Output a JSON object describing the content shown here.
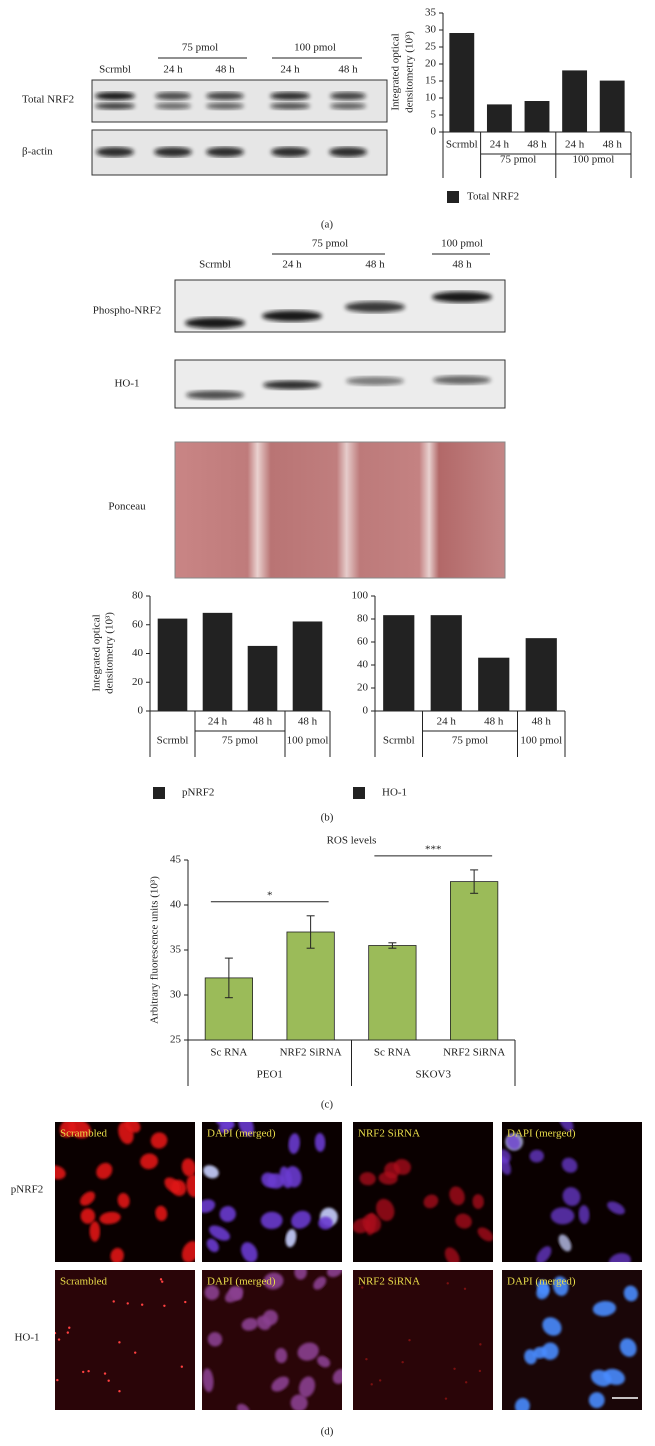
{
  "chart_data": [
    {
      "type": "bar",
      "ylabel": [
        "Integrated optical",
        "densitometry (10³)"
      ],
      "categories": [
        "Scrmbl",
        "24 h",
        "48 h",
        "24 h",
        "48 h"
      ],
      "groups": [
        null,
        "75 pmol",
        "75 pmol",
        "100 pmol",
        "100 pmol"
      ],
      "series": [
        {
          "name": "Total NRF2",
          "color": "#222222",
          "values": [
            29,
            8,
            9,
            18,
            15
          ]
        }
      ],
      "ylim": [
        0,
        35
      ],
      "yticks": [
        0,
        5,
        10,
        15,
        20,
        25,
        30,
        35
      ]
    },
    {
      "type": "bar",
      "ylabel": [
        "Integrated optical",
        "densitometry (10³)"
      ],
      "categories": [
        "Scrmbl",
        "24 h",
        "48 h",
        "48 h"
      ],
      "groups": [
        null,
        "75 pmol",
        "75 pmol",
        "100 pmol"
      ],
      "series": [
        {
          "name": "pNRF2",
          "color": "#222222",
          "values": [
            64,
            68,
            45,
            62
          ]
        }
      ],
      "ylim": [
        0,
        80
      ],
      "yticks": [
        0,
        20,
        40,
        60,
        80
      ]
    },
    {
      "type": "bar",
      "categories": [
        "Scrmbl",
        "24 h",
        "48 h",
        "48 h"
      ],
      "groups": [
        null,
        "75 pmol",
        "75 pmol",
        "100 pmol"
      ],
      "series": [
        {
          "name": "HO-1",
          "color": "#222222",
          "values": [
            83,
            83,
            46,
            63
          ]
        }
      ],
      "ylim": [
        0,
        100
      ],
      "yticks": [
        0,
        20,
        40,
        60,
        80,
        100
      ]
    },
    {
      "type": "bar",
      "title": "ROS levels",
      "ylabel": "Arbitrary fluorescence units (10³)",
      "categories": [
        "Sc RNA",
        "NRF2 SiRNA",
        "Sc RNA",
        "NRF2 SiRNA"
      ],
      "groups": [
        "PEO1",
        "PEO1",
        "SKOV3",
        "SKOV3"
      ],
      "values": [
        31.9,
        37,
        35.5,
        42.6
      ],
      "errors": [
        2.2,
        1.8,
        0.3,
        1.3
      ],
      "color": "#9bbb59",
      "significance": [
        "*",
        "***"
      ],
      "ylim": [
        25,
        45
      ],
      "yticks": [
        25,
        30,
        35,
        40,
        45
      ]
    }
  ],
  "figure": {
    "a": {
      "caption": "(a)",
      "conditions": [
        "75 pmol",
        "100 pmol"
      ],
      "lane_labels": [
        "Scrmbl",
        "24 h",
        "48 h",
        "24 h",
        "48 h"
      ],
      "rows": [
        "Total NRF2",
        "β-actin"
      ]
    },
    "b": {
      "caption": "(b)",
      "conditions": [
        "75 pmol",
        "100 pmol"
      ],
      "lane_labels": [
        "Scrmbl",
        "24 h",
        "48 h",
        "48 h"
      ],
      "rows": [
        "Phospho-NRF2",
        "HO-1",
        "Ponceau"
      ]
    },
    "c": {
      "caption": "(c)"
    },
    "d": {
      "caption": "(d)",
      "rows": [
        {
          "label": "pNRF2",
          "panels": [
            "Scrambled",
            "DAPI (merged)",
            "NRF2 SiRNA",
            "DAPI (merged)"
          ]
        },
        {
          "label": "HO-1",
          "panels": [
            "Scrambled",
            "DAPI (merged)",
            "NRF2 SiRNA",
            "DAPI (merged)"
          ]
        }
      ]
    }
  }
}
